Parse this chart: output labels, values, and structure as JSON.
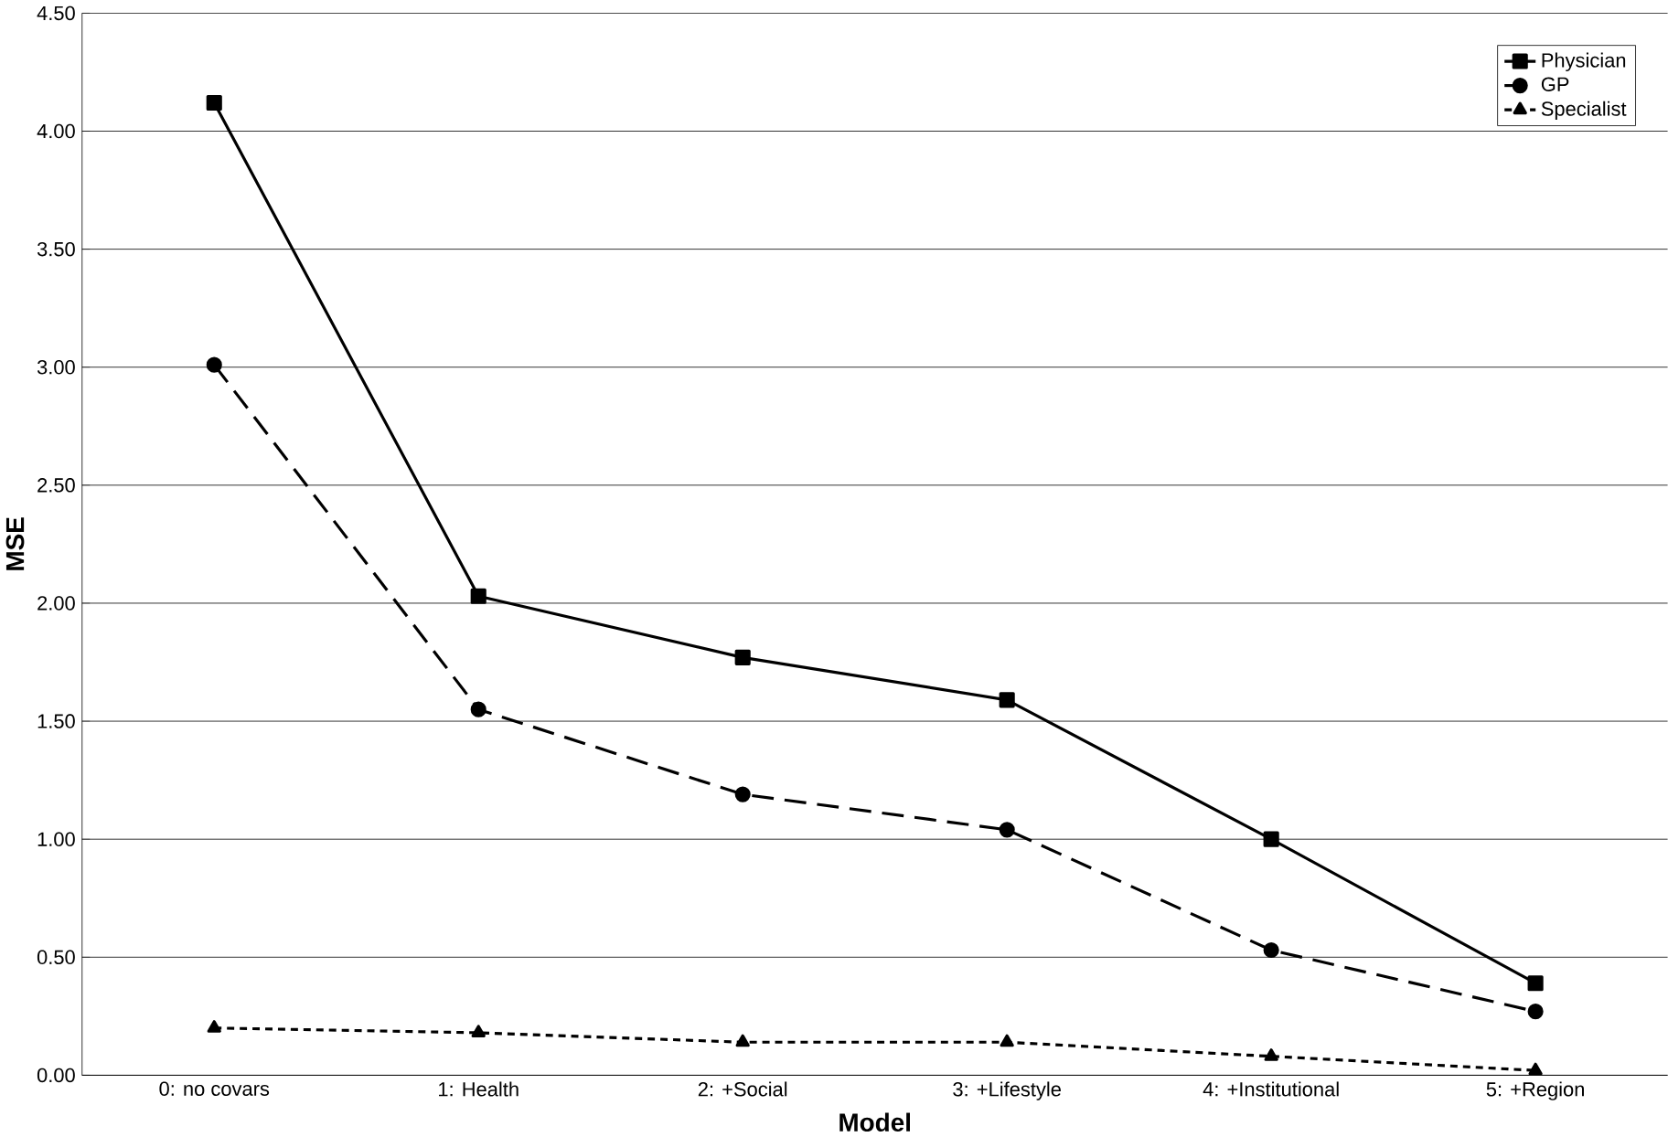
{
  "chart_data": {
    "type": "line",
    "xlabel": "Model",
    "ylabel": "MSE",
    "categories": [
      "0: no covars",
      "1: Health",
      "2: +Social",
      "3: +Lifestyle",
      "4: +Institutional",
      "5: +Region"
    ],
    "series": [
      {
        "name": "Physician",
        "color": "#000000",
        "marker": "square",
        "line_style": "solid",
        "values": [
          4.12,
          2.03,
          1.77,
          1.59,
          1.0,
          0.39
        ]
      },
      {
        "name": "GP",
        "color": "#000000",
        "marker": "circle",
        "line_style": "dashed",
        "values": [
          3.01,
          1.55,
          1.19,
          1.04,
          0.53,
          0.27
        ]
      },
      {
        "name": "Specialist",
        "color": "#000000",
        "marker": "triangle",
        "line_style": "dotted",
        "values": [
          0.2,
          0.18,
          0.14,
          0.14,
          0.08,
          0.02
        ]
      }
    ],
    "ylim": [
      0,
      4.5
    ],
    "yticks": [
      {
        "value": 0,
        "label": "0.00"
      },
      {
        "value": 0.5,
        "label": "0.50"
      },
      {
        "value": 1,
        "label": "1.00"
      },
      {
        "value": 1.5,
        "label": "1.50"
      },
      {
        "value": 2,
        "label": "2.00"
      },
      {
        "value": 2.5,
        "label": "2.50"
      },
      {
        "value": 3,
        "label": "3.00"
      },
      {
        "value": 3.5,
        "label": "3.50"
      },
      {
        "value": 4,
        "label": "4.00"
      },
      {
        "value": 4.5,
        "label": "4.50"
      }
    ],
    "grid": "y",
    "legend": "top right"
  }
}
